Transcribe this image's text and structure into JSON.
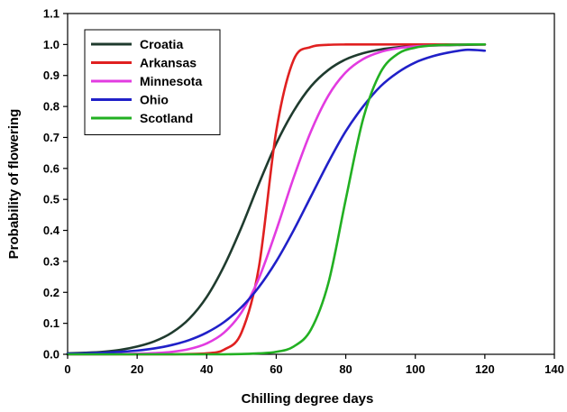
{
  "chart_data": {
    "type": "line",
    "title": "",
    "xlabel": "Chilling degree days",
    "ylabel": "Probability of flowering",
    "xlim": [
      0,
      140
    ],
    "ylim": [
      0,
      1.1
    ],
    "xticks": [
      0,
      20,
      40,
      60,
      80,
      100,
      120,
      140
    ],
    "yticks": [
      0.0,
      0.1,
      0.2,
      0.3,
      0.4,
      0.5,
      0.6,
      0.7,
      0.8,
      0.9,
      1.0,
      1.1
    ],
    "ytick_labels": [
      "0.0",
      "0.1",
      "0.2",
      "0.3",
      "0.4",
      "0.5",
      "0.6",
      "0.7",
      "0.8",
      "0.9",
      "1.0",
      "1.1"
    ],
    "xtick_labels": [
      "0",
      "20",
      "40",
      "60",
      "80",
      "100",
      "120",
      "140"
    ],
    "grid": false,
    "legend_position": "top-left",
    "x": [
      0,
      5,
      10,
      15,
      20,
      25,
      30,
      35,
      40,
      45,
      50,
      55,
      60,
      65,
      70,
      75,
      80,
      85,
      90,
      95,
      100,
      105,
      110,
      115,
      120
    ],
    "series": [
      {
        "name": "Croatia",
        "color": "#1f3b2e",
        "values": [
          0.003,
          0.005,
          0.008,
          0.014,
          0.025,
          0.042,
          0.07,
          0.115,
          0.185,
          0.285,
          0.41,
          0.55,
          0.68,
          0.785,
          0.865,
          0.918,
          0.952,
          0.972,
          0.984,
          0.991,
          0.995,
          0.997,
          0.998,
          0.999,
          1.0
        ]
      },
      {
        "name": "Arkansas",
        "color": "#e02020",
        "values": [
          0.0,
          0.0,
          0.0,
          0.0,
          0.0,
          0.0,
          0.0,
          0.001,
          0.003,
          0.015,
          0.07,
          0.28,
          0.72,
          0.95,
          0.992,
          0.999,
          1.0,
          1.0,
          1.0,
          1.0,
          1.0,
          1.0,
          1.0,
          1.0,
          1.0
        ]
      },
      {
        "name": "Minnesota",
        "color": "#e23be0",
        "values": [
          0.0,
          0.0,
          0.0,
          0.001,
          0.002,
          0.004,
          0.008,
          0.017,
          0.035,
          0.07,
          0.135,
          0.245,
          0.4,
          0.57,
          0.72,
          0.835,
          0.91,
          0.953,
          0.976,
          0.988,
          0.994,
          0.997,
          0.999,
          1.0,
          1.0
        ]
      },
      {
        "name": "Ohio",
        "color": "#2020c8",
        "values": [
          0.002,
          0.003,
          0.005,
          0.008,
          0.012,
          0.019,
          0.03,
          0.046,
          0.07,
          0.104,
          0.152,
          0.217,
          0.3,
          0.4,
          0.51,
          0.62,
          0.72,
          0.8,
          0.865,
          0.91,
          0.942,
          0.962,
          0.975,
          0.983,
          0.98
        ]
      },
      {
        "name": "Scotland",
        "color": "#22b022",
        "values": [
          0.0,
          0.0,
          0.0,
          0.0,
          0.0,
          0.0,
          0.0,
          0.0,
          0.0,
          0.0,
          0.001,
          0.003,
          0.008,
          0.025,
          0.08,
          0.23,
          0.5,
          0.76,
          0.91,
          0.97,
          0.99,
          0.997,
          0.999,
          1.0,
          1.0
        ]
      }
    ]
  }
}
